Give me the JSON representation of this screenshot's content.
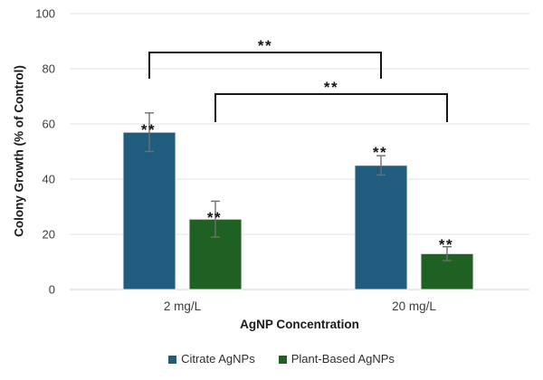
{
  "chart_data": {
    "type": "bar",
    "title": "",
    "xlabel": "AgNP Concentration",
    "ylabel": "Colony Growth (% of Control)",
    "categories": [
      "2 mg/L",
      "20 mg/L"
    ],
    "series": [
      {
        "name": "Citrate AgNPs",
        "color": "#1F5C7E",
        "values": [
          57,
          45
        ],
        "errors": [
          7,
          3.5
        ]
      },
      {
        "name": "Plant-Based AgNPs",
        "color": "#1F6122",
        "values": [
          25.5,
          13
        ],
        "errors": [
          6.5,
          2.5
        ]
      }
    ],
    "bar_annotations": [
      [
        "**",
        "**"
      ],
      [
        "**",
        "**"
      ]
    ],
    "significance_brackets": [
      {
        "label": "**",
        "series": "Citrate AgNPs",
        "from_category": "2 mg/L",
        "to_category": "20 mg/L"
      },
      {
        "label": "**",
        "series": "Plant-Based AgNPs",
        "from_category": "2 mg/L",
        "to_category": "20 mg/L"
      }
    ],
    "ylim": [
      0,
      100
    ],
    "yticks": [
      0,
      20,
      40,
      60,
      80,
      100
    ],
    "grid": true,
    "legend_position": "bottom",
    "colors": {
      "gridline": "#E0E0E0",
      "axis_line": "#D3D3D3",
      "error_bar": "#6F6F6F",
      "bar_edge": "#ECECEC",
      "annotation": "#161616",
      "tick_text": "#3D3D3D"
    }
  }
}
